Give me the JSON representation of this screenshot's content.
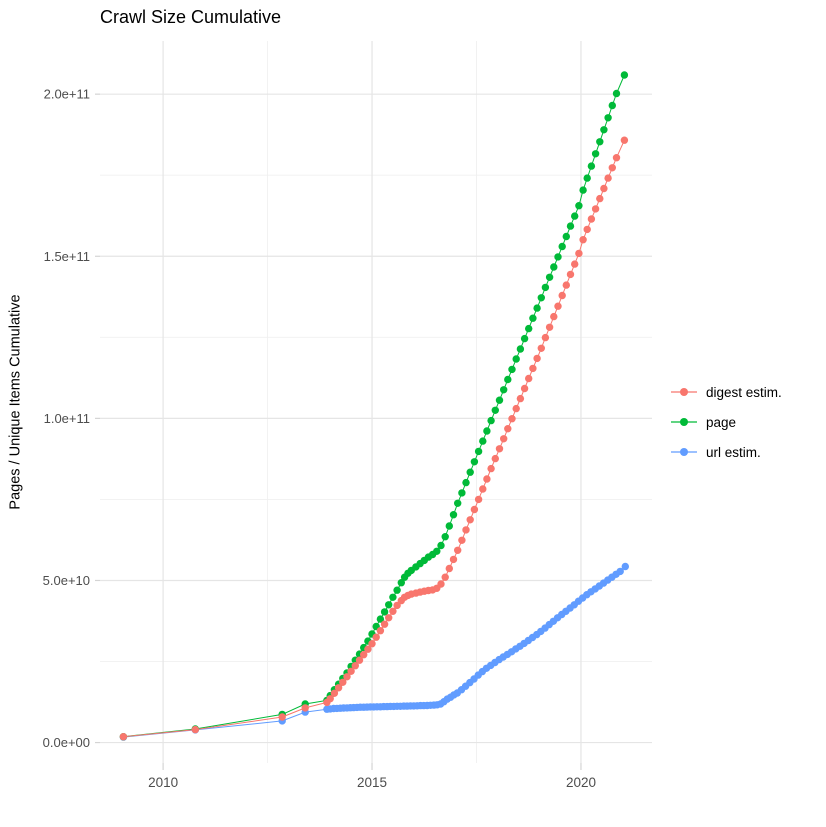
{
  "page": {
    "background": "#ffffff"
  },
  "header": {
    "title": "Crawl Size Cumulative"
  },
  "chart_data": {
    "type": "line",
    "title": "Crawl Size Cumulative",
    "xlabel": "",
    "ylabel": "Pages / Unique Items Cumulative",
    "legend_position": "right",
    "grid": true,
    "x_unit": "year",
    "y_unit_multiplier": 1000000000.0,
    "xlim": [
      2008.49,
      2021.7
    ],
    "ylim_e9": [
      -6.3,
      216.4
    ],
    "x_ticks": {
      "major": [
        2010,
        2015,
        2020
      ],
      "labels": [
        "2010",
        "2015",
        "2020"
      ],
      "minor": [
        2012.5,
        2017.5
      ]
    },
    "y_ticks": {
      "major_e9": [
        0,
        50,
        100,
        150,
        200
      ],
      "labels": [
        "0.0e+00",
        "5.0e+10",
        "1.0e+11",
        "1.5e+11",
        "2.0e+11"
      ],
      "minor_e9": [
        25,
        75,
        125,
        175
      ]
    },
    "colors": {
      "digest": "#F8766D",
      "page": "#00BA38",
      "url": "#619CFF"
    },
    "series": [
      {
        "name": "digest estim.",
        "color": "#F8766D",
        "points_year_e9": [
          [
            2009.05,
            1.8
          ],
          [
            2010.77,
            4.0
          ],
          [
            2012.85,
            7.9
          ],
          [
            2013.4,
            10.7
          ],
          [
            2013.92,
            12.4
          ],
          [
            2014.0,
            13.5
          ],
          [
            2014.1,
            15.2
          ],
          [
            2014.2,
            16.9
          ],
          [
            2014.3,
            18.6
          ],
          [
            2014.4,
            20.3
          ],
          [
            2014.5,
            22.0
          ],
          [
            2014.6,
            23.7
          ],
          [
            2014.7,
            25.4
          ],
          [
            2014.8,
            27.1
          ],
          [
            2014.9,
            28.8
          ],
          [
            2015.0,
            30.5
          ],
          [
            2015.1,
            32.5
          ],
          [
            2015.2,
            34.5
          ],
          [
            2015.3,
            36.5
          ],
          [
            2015.4,
            38.5
          ],
          [
            2015.5,
            40.5
          ],
          [
            2015.6,
            42.3
          ],
          [
            2015.7,
            43.8
          ],
          [
            2015.78,
            44.8
          ],
          [
            2015.86,
            45.4
          ],
          [
            2015.94,
            45.8
          ],
          [
            2016.05,
            46.1
          ],
          [
            2016.15,
            46.4
          ],
          [
            2016.25,
            46.7
          ],
          [
            2016.35,
            46.9
          ],
          [
            2016.45,
            47.1
          ],
          [
            2016.55,
            47.6
          ],
          [
            2016.65,
            48.9
          ],
          [
            2016.75,
            51.0
          ],
          [
            2016.85,
            53.7
          ],
          [
            2016.95,
            56.5
          ],
          [
            2017.05,
            59.3
          ],
          [
            2017.15,
            62.4
          ],
          [
            2017.25,
            65.6
          ],
          [
            2017.35,
            68.7
          ],
          [
            2017.45,
            71.9
          ],
          [
            2017.55,
            75.0
          ],
          [
            2017.65,
            78.2
          ],
          [
            2017.75,
            81.3
          ],
          [
            2017.85,
            84.5
          ],
          [
            2017.95,
            87.6
          ],
          [
            2018.05,
            90.6
          ],
          [
            2018.15,
            93.7
          ],
          [
            2018.25,
            96.8
          ],
          [
            2018.35,
            99.9
          ],
          [
            2018.45,
            103.0
          ],
          [
            2018.55,
            106.1
          ],
          [
            2018.65,
            109.2
          ],
          [
            2018.75,
            112.3
          ],
          [
            2018.85,
            115.4
          ],
          [
            2018.95,
            118.5
          ],
          [
            2019.05,
            121.6
          ],
          [
            2019.15,
            124.9
          ],
          [
            2019.25,
            128.1
          ],
          [
            2019.35,
            131.4
          ],
          [
            2019.45,
            134.6
          ],
          [
            2019.55,
            137.9
          ],
          [
            2019.65,
            141.1
          ],
          [
            2019.75,
            144.4
          ],
          [
            2019.85,
            147.6
          ],
          [
            2019.95,
            150.9
          ],
          [
            2020.05,
            155.1
          ],
          [
            2020.15,
            158.3
          ],
          [
            2020.25,
            161.5
          ],
          [
            2020.35,
            164.6
          ],
          [
            2020.45,
            167.8
          ],
          [
            2020.55,
            170.9
          ],
          [
            2020.65,
            174.1
          ],
          [
            2020.75,
            177.3
          ],
          [
            2020.85,
            180.4
          ],
          [
            2021.04,
            185.8
          ]
        ]
      },
      {
        "name": "page",
        "color": "#00BA38",
        "points_year_e9": [
          [
            2009.05,
            1.8
          ],
          [
            2010.77,
            4.2
          ],
          [
            2012.85,
            8.7
          ],
          [
            2013.4,
            11.9
          ],
          [
            2013.92,
            13.0
          ],
          [
            2014.0,
            14.5
          ],
          [
            2014.1,
            16.3
          ],
          [
            2014.2,
            18.0
          ],
          [
            2014.3,
            19.8
          ],
          [
            2014.4,
            21.5
          ],
          [
            2014.5,
            23.5
          ],
          [
            2014.6,
            25.4
          ],
          [
            2014.7,
            27.3
          ],
          [
            2014.8,
            29.3
          ],
          [
            2014.9,
            31.3
          ],
          [
            2015.0,
            33.5
          ],
          [
            2015.1,
            35.8
          ],
          [
            2015.2,
            38.1
          ],
          [
            2015.3,
            40.3
          ],
          [
            2015.4,
            42.5
          ],
          [
            2015.5,
            44.8
          ],
          [
            2015.6,
            47.0
          ],
          [
            2015.7,
            49.3
          ],
          [
            2015.78,
            51.0
          ],
          [
            2015.86,
            52.2
          ],
          [
            2015.94,
            53.1
          ],
          [
            2016.05,
            54.2
          ],
          [
            2016.15,
            55.2
          ],
          [
            2016.25,
            56.2
          ],
          [
            2016.35,
            57.2
          ],
          [
            2016.45,
            58.0
          ],
          [
            2016.55,
            59.0
          ],
          [
            2016.65,
            60.8
          ],
          [
            2016.75,
            63.5
          ],
          [
            2016.85,
            66.8
          ],
          [
            2016.95,
            70.3
          ],
          [
            2017.05,
            73.8
          ],
          [
            2017.15,
            77.0
          ],
          [
            2017.25,
            80.2
          ],
          [
            2017.35,
            83.4
          ],
          [
            2017.45,
            86.6
          ],
          [
            2017.55,
            89.8
          ],
          [
            2017.65,
            93.0
          ],
          [
            2017.75,
            96.1
          ],
          [
            2017.85,
            99.3
          ],
          [
            2017.95,
            102.5
          ],
          [
            2018.05,
            105.6
          ],
          [
            2018.15,
            108.8
          ],
          [
            2018.25,
            112.0
          ],
          [
            2018.35,
            115.1
          ],
          [
            2018.45,
            118.3
          ],
          [
            2018.55,
            121.4
          ],
          [
            2018.65,
            124.6
          ],
          [
            2018.75,
            127.7
          ],
          [
            2018.85,
            130.9
          ],
          [
            2018.95,
            134.0
          ],
          [
            2019.05,
            137.2
          ],
          [
            2019.15,
            140.4
          ],
          [
            2019.25,
            143.5
          ],
          [
            2019.35,
            146.7
          ],
          [
            2019.45,
            149.8
          ],
          [
            2019.55,
            153.0
          ],
          [
            2019.65,
            156.1
          ],
          [
            2019.75,
            159.3
          ],
          [
            2019.85,
            162.4
          ],
          [
            2019.95,
            165.6
          ],
          [
            2020.05,
            170.4
          ],
          [
            2020.15,
            174.1
          ],
          [
            2020.25,
            177.8
          ],
          [
            2020.35,
            181.6
          ],
          [
            2020.45,
            185.3
          ],
          [
            2020.55,
            189.0
          ],
          [
            2020.65,
            192.7
          ],
          [
            2020.75,
            196.5
          ],
          [
            2020.85,
            200.2
          ],
          [
            2021.04,
            205.9
          ]
        ]
      },
      {
        "name": "url estim.",
        "color": "#619CFF",
        "points_year_e9": [
          [
            2009.05,
            1.7
          ],
          [
            2010.77,
            3.9
          ],
          [
            2012.85,
            6.7
          ],
          [
            2013.4,
            9.4
          ],
          [
            2013.92,
            10.3
          ],
          [
            2014.0,
            10.4
          ],
          [
            2014.08,
            10.5
          ],
          [
            2014.16,
            10.55
          ],
          [
            2014.24,
            10.6
          ],
          [
            2014.32,
            10.65
          ],
          [
            2014.4,
            10.7
          ],
          [
            2014.48,
            10.75
          ],
          [
            2014.56,
            10.8
          ],
          [
            2014.64,
            10.85
          ],
          [
            2014.72,
            10.9
          ],
          [
            2014.8,
            10.92
          ],
          [
            2014.88,
            10.95
          ],
          [
            2014.96,
            11.0
          ],
          [
            2015.04,
            11.0
          ],
          [
            2015.12,
            11.05
          ],
          [
            2015.2,
            11.05
          ],
          [
            2015.28,
            11.1
          ],
          [
            2015.36,
            11.1
          ],
          [
            2015.44,
            11.15
          ],
          [
            2015.52,
            11.15
          ],
          [
            2015.6,
            11.2
          ],
          [
            2015.68,
            11.2
          ],
          [
            2015.76,
            11.25
          ],
          [
            2015.84,
            11.25
          ],
          [
            2015.92,
            11.3
          ],
          [
            2016.0,
            11.3
          ],
          [
            2016.08,
            11.35
          ],
          [
            2016.16,
            11.4
          ],
          [
            2016.24,
            11.4
          ],
          [
            2016.32,
            11.45
          ],
          [
            2016.4,
            11.5
          ],
          [
            2016.48,
            11.55
          ],
          [
            2016.56,
            11.65
          ],
          [
            2016.64,
            11.9
          ],
          [
            2016.72,
            12.6
          ],
          [
            2016.8,
            13.4
          ],
          [
            2016.88,
            14.0
          ],
          [
            2016.96,
            14.7
          ],
          [
            2017.04,
            15.3
          ],
          [
            2017.14,
            16.3
          ],
          [
            2017.24,
            17.4
          ],
          [
            2017.34,
            18.5
          ],
          [
            2017.44,
            19.6
          ],
          [
            2017.54,
            20.8
          ],
          [
            2017.64,
            21.9
          ],
          [
            2017.74,
            22.9
          ],
          [
            2017.84,
            23.8
          ],
          [
            2017.94,
            24.7
          ],
          [
            2018.04,
            25.6
          ],
          [
            2018.14,
            26.4
          ],
          [
            2018.24,
            27.2
          ],
          [
            2018.34,
            28.0
          ],
          [
            2018.44,
            28.9
          ],
          [
            2018.54,
            29.7
          ],
          [
            2018.64,
            30.6
          ],
          [
            2018.74,
            31.5
          ],
          [
            2018.84,
            32.4
          ],
          [
            2018.94,
            33.3
          ],
          [
            2019.04,
            34.3
          ],
          [
            2019.14,
            35.3
          ],
          [
            2019.24,
            36.4
          ],
          [
            2019.34,
            37.4
          ],
          [
            2019.44,
            38.5
          ],
          [
            2019.54,
            39.5
          ],
          [
            2019.64,
            40.5
          ],
          [
            2019.74,
            41.5
          ],
          [
            2019.84,
            42.5
          ],
          [
            2019.94,
            43.6
          ],
          [
            2020.04,
            44.6
          ],
          [
            2020.14,
            45.6
          ],
          [
            2020.24,
            46.5
          ],
          [
            2020.34,
            47.4
          ],
          [
            2020.44,
            48.3
          ],
          [
            2020.54,
            49.2
          ],
          [
            2020.64,
            50.1
          ],
          [
            2020.74,
            51.0
          ],
          [
            2020.84,
            51.9
          ],
          [
            2020.94,
            52.8
          ],
          [
            2021.06,
            54.3
          ]
        ]
      }
    ]
  }
}
